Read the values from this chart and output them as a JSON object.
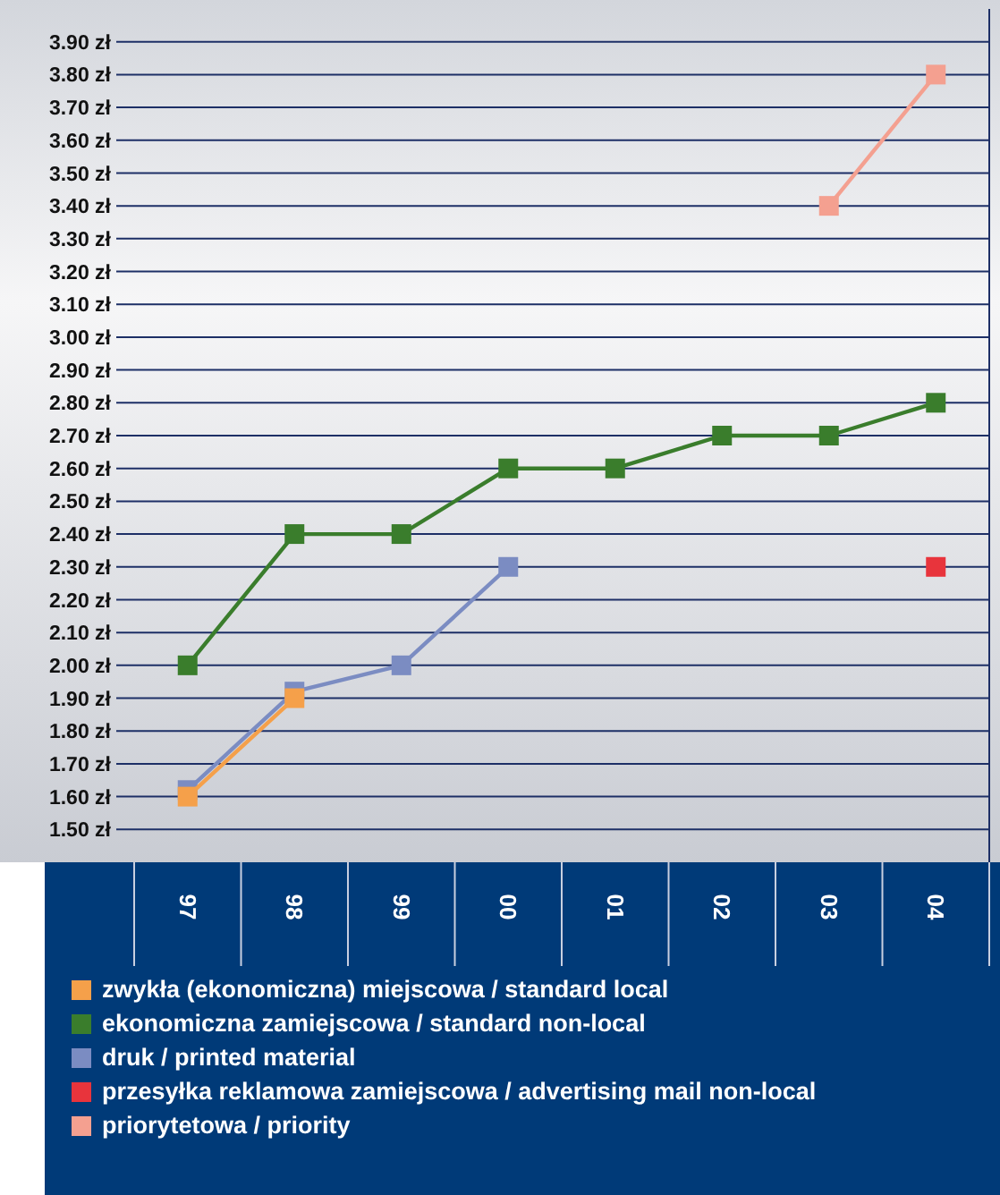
{
  "chart_data": {
    "type": "line",
    "categories": [
      "97",
      "98",
      "99",
      "00",
      "01",
      "02",
      "03",
      "04"
    ],
    "series": [
      {
        "name": "zwykła (ekonomiczna) miejscowa / standard local",
        "color": "#f5a04a",
        "values": [
          1.6,
          1.9,
          null,
          null,
          null,
          null,
          null,
          null
        ]
      },
      {
        "name": "ekonomiczna zamiejscowa / standard non-local",
        "color": "#3a7d2c",
        "values": [
          2.0,
          2.4,
          2.4,
          2.6,
          2.6,
          2.7,
          2.7,
          2.8
        ]
      },
      {
        "name": "druk / printed material",
        "color": "#7b8cc2",
        "values": [
          1.62,
          1.92,
          2.0,
          2.3,
          null,
          null,
          null,
          null
        ]
      },
      {
        "name": "przesyłka reklamowa zamiejscowa / advertising mail non-local",
        "color": "#e8343c",
        "values": [
          null,
          null,
          null,
          null,
          null,
          null,
          null,
          2.3
        ]
      },
      {
        "name": "priorytetowa / priority",
        "color": "#f4a090",
        "values": [
          null,
          null,
          null,
          null,
          null,
          null,
          3.4,
          3.8
        ]
      }
    ],
    "ylim": [
      1.4,
      4.0
    ],
    "yticks": [
      {
        "value": 1.5,
        "label": "1.50 zł"
      },
      {
        "value": 1.6,
        "label": "1.60 zł"
      },
      {
        "value": 1.7,
        "label": "1.70 zł"
      },
      {
        "value": 1.8,
        "label": "1.80 zł"
      },
      {
        "value": 1.9,
        "label": "1.90 zł"
      },
      {
        "value": 2.0,
        "label": "2.00 zł"
      },
      {
        "value": 2.1,
        "label": "2.10 zł"
      },
      {
        "value": 2.2,
        "label": "2.20 zł"
      },
      {
        "value": 2.3,
        "label": "2.30 zł"
      },
      {
        "value": 2.4,
        "label": "2.40 zł"
      },
      {
        "value": 2.5,
        "label": "2.50 zł"
      },
      {
        "value": 2.6,
        "label": "2.60 zł"
      },
      {
        "value": 2.7,
        "label": "2.70 zł"
      },
      {
        "value": 2.8,
        "label": "2.80 zł"
      },
      {
        "value": 2.9,
        "label": "2.90 zł"
      },
      {
        "value": 3.0,
        "label": "3.00 zł"
      },
      {
        "value": 3.1,
        "label": "3.10 zł"
      },
      {
        "value": 3.2,
        "label": "3.20 zł"
      },
      {
        "value": 3.3,
        "label": "3.30 zł"
      },
      {
        "value": 3.4,
        "label": "3.40 zł"
      },
      {
        "value": 3.5,
        "label": "3.50 zł"
      },
      {
        "value": 3.6,
        "label": "3.60 zł"
      },
      {
        "value": 3.7,
        "label": "3.70 zł"
      },
      {
        "value": 3.8,
        "label": "3.80 zł"
      },
      {
        "value": 3.9,
        "label": "3.90 zł"
      }
    ],
    "grid": "y",
    "legend": "bottom",
    "marker": "square",
    "line_style": "solid"
  }
}
